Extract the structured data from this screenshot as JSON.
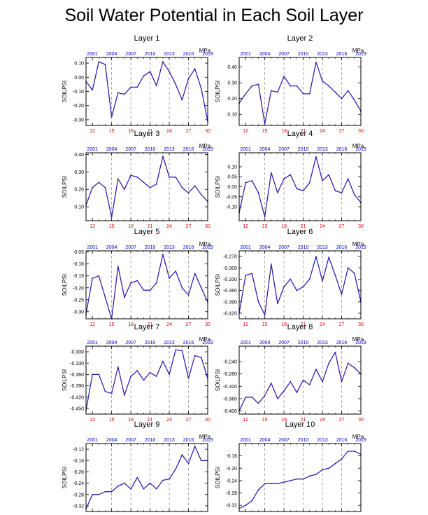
{
  "title": "Soil Water Potential in Each Soil Layer",
  "colors": {
    "line": "#2222cc",
    "line_overlay": "#cc0000",
    "bottom_ticks": "#dd0000",
    "top_ticks": "#0000cc",
    "axis": "#000000",
    "grid": "#888888"
  },
  "chart_data": [
    {
      "type": "line",
      "title": "Layer 1",
      "ylabel": "SOILPSI",
      "unit": "MPa",
      "ylim": [
        -0.34,
        0.14
      ],
      "yticks": [
        0.1,
        0.0,
        -0.1,
        -0.2,
        -0.3
      ],
      "ytick_labels": [
        "0.10",
        "0.00",
        "-0.10",
        "-0.20",
        "-0.30"
      ],
      "xlim": [
        11,
        30
      ],
      "xticks": [
        12,
        15,
        18,
        21,
        24,
        27,
        30
      ],
      "xtick_labels": [
        "12",
        "15",
        "18",
        "21",
        "24",
        "27",
        "30"
      ],
      "top_tick_labels": [
        "2001",
        "2004",
        "2007",
        "2010",
        "2013",
        "2016",
        "2019"
      ],
      "grid_x": [
        15,
        18,
        21,
        24,
        27
      ],
      "x": [
        11,
        12,
        13,
        14,
        15,
        16,
        17,
        18,
        19,
        20,
        21,
        22,
        23,
        24,
        25,
        26,
        27,
        28,
        29,
        30
      ],
      "values": [
        -0.03,
        -0.09,
        0.11,
        0.09,
        -0.28,
        -0.11,
        -0.12,
        -0.07,
        -0.07,
        0.01,
        0.04,
        -0.06,
        0.11,
        0.04,
        -0.05,
        -0.16,
        -0.01,
        0.06,
        -0.08,
        -0.31
      ]
    },
    {
      "type": "line",
      "title": "Layer 2",
      "ylabel": "SOILPSI",
      "unit": "MPa",
      "ylim": [
        0.03,
        0.46
      ],
      "yticks": [
        0.4,
        0.3,
        0.2,
        0.1
      ],
      "ytick_labels": [
        "0.40",
        "0.30",
        "0.20",
        "0.10"
      ],
      "xlim": [
        11,
        30
      ],
      "xticks": [
        12,
        15,
        18,
        21,
        24,
        27,
        30
      ],
      "xtick_labels": [
        "12",
        "15",
        "18",
        "21",
        "24",
        "27",
        "30"
      ],
      "top_tick_labels": [
        "2001",
        "2004",
        "2007",
        "2010",
        "2013",
        "2016",
        "2019"
      ],
      "grid_x": [
        15,
        18,
        21,
        24,
        27
      ],
      "x": [
        11,
        12,
        13,
        14,
        15,
        16,
        17,
        18,
        19,
        20,
        21,
        22,
        23,
        24,
        25,
        26,
        27,
        28,
        29,
        30
      ],
      "values": [
        0.17,
        0.23,
        0.28,
        0.29,
        0.04,
        0.25,
        0.24,
        0.34,
        0.28,
        0.28,
        0.23,
        0.23,
        0.43,
        0.31,
        0.28,
        0.24,
        0.2,
        0.25,
        0.19,
        0.12
      ]
    },
    {
      "type": "line",
      "title": "Layer 3",
      "ylabel": "SOILPSI",
      "unit": "MPa",
      "ylim": [
        0.02,
        0.41
      ],
      "yticks": [
        0.4,
        0.3,
        0.2,
        0.1
      ],
      "ytick_labels": [
        "0.40",
        "0.30",
        "0.20",
        "0.10"
      ],
      "xlim": [
        11,
        30
      ],
      "xticks": [
        12,
        15,
        18,
        21,
        24,
        27,
        30
      ],
      "xtick_labels": [
        "12",
        "15",
        "18",
        "21",
        "24",
        "27",
        "30"
      ],
      "top_tick_labels": [
        "2001",
        "2004",
        "2007",
        "2010",
        "2013",
        "2016",
        "2019"
      ],
      "grid_x": [
        15,
        18,
        21,
        24,
        27
      ],
      "x": [
        11,
        12,
        13,
        14,
        15,
        16,
        17,
        18,
        19,
        20,
        21,
        22,
        23,
        24,
        25,
        26,
        27,
        28,
        29,
        30
      ],
      "values": [
        0.11,
        0.21,
        0.24,
        0.21,
        0.04,
        0.26,
        0.2,
        0.28,
        0.27,
        0.24,
        0.21,
        0.23,
        0.39,
        0.27,
        0.27,
        0.21,
        0.18,
        0.22,
        0.17,
        0.13
      ]
    },
    {
      "type": "line",
      "title": "Layer 4",
      "ylabel": "SOILPSI",
      "unit": "MPa",
      "ylim": [
        -0.17,
        0.17
      ],
      "yticks": [
        0.1,
        0.05,
        0.0,
        -0.05,
        -0.1
      ],
      "ytick_labels": [
        "0.10",
        "0.05",
        "0.00",
        "-0.05",
        "-0.10"
      ],
      "xlim": [
        11,
        30
      ],
      "xticks": [
        12,
        15,
        18,
        21,
        24,
        27,
        30
      ],
      "xtick_labels": [
        "12",
        "15",
        "18",
        "21",
        "24",
        "27",
        "30"
      ],
      "top_tick_labels": [
        "2001",
        "2004",
        "2007",
        "2010",
        "2013",
        "2016",
        "2019"
      ],
      "grid_x": [
        15,
        18,
        21,
        24,
        27
      ],
      "x": [
        11,
        12,
        13,
        14,
        15,
        16,
        17,
        18,
        19,
        20,
        21,
        22,
        23,
        24,
        25,
        26,
        27,
        28,
        29,
        30
      ],
      "values": [
        -0.13,
        0.02,
        0.03,
        -0.03,
        -0.15,
        0.07,
        -0.03,
        0.04,
        0.06,
        -0.01,
        -0.02,
        0.02,
        0.15,
        0.03,
        0.06,
        -0.02,
        -0.03,
        0.04,
        -0.04,
        -0.08
      ]
    },
    {
      "type": "line",
      "title": "Layer 5",
      "ylabel": "SOILPSI",
      "unit": "MPa",
      "ylim": [
        -0.33,
        -0.045
      ],
      "yticks": [
        -0.05,
        -0.1,
        -0.15,
        -0.2,
        -0.25,
        -0.3
      ],
      "ytick_labels": [
        "-0.05",
        "-0.10",
        "-0.15",
        "-0.20",
        "-0.25",
        "-0.30"
      ],
      "xlim": [
        11,
        30
      ],
      "xticks": [
        12,
        15,
        18,
        21,
        24,
        27,
        30
      ],
      "xtick_labels": [
        "12",
        "15",
        "18",
        "21",
        "24",
        "27",
        "30"
      ],
      "top_tick_labels": [
        "2001",
        "2004",
        "2007",
        "2010",
        "2013",
        "2016",
        "2019"
      ],
      "grid_x": [
        15,
        18,
        21,
        24,
        27
      ],
      "x": [
        11,
        12,
        13,
        14,
        15,
        16,
        17,
        18,
        19,
        20,
        21,
        22,
        23,
        24,
        25,
        26,
        27,
        28,
        29,
        30
      ],
      "values": [
        -0.31,
        -0.16,
        -0.15,
        -0.24,
        -0.33,
        -0.11,
        -0.24,
        -0.18,
        -0.17,
        -0.21,
        -0.21,
        -0.18,
        -0.06,
        -0.16,
        -0.13,
        -0.2,
        -0.23,
        -0.14,
        -0.2,
        -0.26
      ]
    },
    {
      "type": "line",
      "title": "Layer 6",
      "ylabel": "SOILPSI",
      "unit": "MPa",
      "ylim": [
        -0.435,
        -0.255
      ],
      "yticks": [
        -0.27,
        -0.3,
        -0.33,
        -0.36,
        -0.39,
        -0.42
      ],
      "ytick_labels": [
        "-0.270",
        "-0.300",
        "-0.330",
        "-0.360",
        "-0.390",
        "-0.420"
      ],
      "xlim": [
        11,
        30
      ],
      "xticks": [
        12,
        15,
        18,
        21,
        24,
        27,
        30
      ],
      "xtick_labels": [
        "12",
        "15",
        "18",
        "21",
        "24",
        "27",
        "30"
      ],
      "top_tick_labels": [
        "2001",
        "2004",
        "2007",
        "2010",
        "2013",
        "2016",
        "2019"
      ],
      "grid_x": [
        15,
        18,
        21,
        24,
        27
      ],
      "x": [
        11,
        12,
        13,
        14,
        15,
        16,
        17,
        18,
        19,
        20,
        21,
        22,
        23,
        24,
        25,
        26,
        27,
        28,
        29,
        30
      ],
      "values": [
        -0.42,
        -0.32,
        -0.315,
        -0.39,
        -0.425,
        -0.29,
        -0.395,
        -0.35,
        -0.33,
        -0.36,
        -0.35,
        -0.33,
        -0.27,
        -0.335,
        -0.272,
        -0.32,
        -0.37,
        -0.3,
        -0.315,
        -0.39
      ]
    },
    {
      "type": "line",
      "title": "Layer 7",
      "ylabel": "SOILPSI",
      "unit": "MPa",
      "ylim": [
        -0.465,
        -0.285
      ],
      "yticks": [
        -0.3,
        -0.33,
        -0.36,
        -0.39,
        -0.42,
        -0.45
      ],
      "ytick_labels": [
        "-0.300",
        "-0.330",
        "-0.360",
        "-0.390",
        "-0.420",
        "-0.450"
      ],
      "xlim": [
        11,
        30
      ],
      "xticks": [
        12,
        15,
        18,
        21,
        24,
        27,
        30
      ],
      "xtick_labels": [
        "12",
        "15",
        "18",
        "21",
        "24",
        "27",
        "30"
      ],
      "top_tick_labels": [
        "2001",
        "2004",
        "2007",
        "2010",
        "2013",
        "2016",
        "2019"
      ],
      "grid_x": [
        15,
        18,
        21,
        24,
        27
      ],
      "x": [
        11,
        12,
        13,
        14,
        15,
        16,
        17,
        18,
        19,
        20,
        21,
        22,
        23,
        24,
        25,
        26,
        27,
        28,
        29,
        30
      ],
      "values": [
        -0.455,
        -0.36,
        -0.36,
        -0.405,
        -0.41,
        -0.34,
        -0.415,
        -0.365,
        -0.35,
        -0.375,
        -0.355,
        -0.365,
        -0.325,
        -0.36,
        -0.295,
        -0.297,
        -0.37,
        -0.31,
        -0.315,
        -0.37
      ]
    },
    {
      "type": "line",
      "title": "Layer 8",
      "ylabel": "SOILPSI",
      "unit": "MPa",
      "ylim": [
        -0.41,
        -0.19
      ],
      "yticks": [
        -0.24,
        -0.28,
        -0.32,
        -0.36,
        -0.4
      ],
      "ytick_labels": [
        "-0.240",
        "-0.280",
        "-0.320",
        "-0.360",
        "-0.400"
      ],
      "xlim": [
        11,
        30
      ],
      "xticks": [
        12,
        15,
        18,
        21,
        24,
        27,
        30
      ],
      "xtick_labels": [
        "12",
        "15",
        "18",
        "21",
        "24",
        "27",
        "30"
      ],
      "top_tick_labels": [
        "2001",
        "2004",
        "2007",
        "2010",
        "2013",
        "2016",
        "2019"
      ],
      "grid_x": [
        15,
        18,
        21,
        24,
        27
      ],
      "x": [
        11,
        12,
        13,
        14,
        15,
        16,
        17,
        18,
        19,
        20,
        21,
        22,
        23,
        24,
        25,
        26,
        27,
        28,
        29,
        30
      ],
      "values": [
        -0.4,
        -0.355,
        -0.355,
        -0.375,
        -0.35,
        -0.31,
        -0.36,
        -0.335,
        -0.305,
        -0.34,
        -0.3,
        -0.315,
        -0.265,
        -0.305,
        -0.245,
        -0.21,
        -0.305,
        -0.245,
        -0.26,
        -0.28
      ]
    },
    {
      "type": "line",
      "title": "Layer 9",
      "ylabel": "SOILPSI",
      "unit": "MPa",
      "ylim": [
        -0.34,
        -0.1
      ],
      "yticks": [
        -0.12,
        -0.16,
        -0.2,
        -0.24,
        -0.28,
        -0.32
      ],
      "ytick_labels": [
        "-0.12",
        "-0.16",
        "-0.20",
        "-0.24",
        "-0.28",
        "-0.32"
      ],
      "xlim": [
        11,
        30
      ],
      "xticks": [
        12,
        15,
        18,
        21,
        24,
        27,
        30
      ],
      "xtick_labels": [
        "12",
        "15",
        "18",
        "21",
        "24",
        "27",
        "30"
      ],
      "top_tick_labels": [
        "2001",
        "2004",
        "2007",
        "2010",
        "2013",
        "2016",
        "2019"
      ],
      "grid_x": [
        15,
        18,
        21,
        24,
        27
      ],
      "x": [
        11,
        12,
        13,
        14,
        15,
        16,
        17,
        18,
        19,
        20,
        21,
        22,
        23,
        24,
        25,
        26,
        27,
        28,
        29,
        30
      ],
      "values": [
        -0.33,
        -0.28,
        -0.28,
        -0.27,
        -0.27,
        -0.25,
        -0.24,
        -0.26,
        -0.22,
        -0.26,
        -0.24,
        -0.26,
        -0.23,
        -0.225,
        -0.19,
        -0.14,
        -0.17,
        -0.11,
        -0.16,
        -0.16
      ]
    },
    {
      "type": "line",
      "title": "Layer 10",
      "ylabel": "SOILPSI",
      "unit": "MPa",
      "ylim": [
        -0.34,
        -0.12
      ],
      "yticks": [
        -0.16,
        -0.2,
        -0.24,
        -0.28,
        -0.32
      ],
      "ytick_labels": [
        "-0.16",
        "-0.20",
        "-0.24",
        "-0.28",
        "-0.32"
      ],
      "xlim": [
        11,
        30
      ],
      "xticks": [
        12,
        15,
        18,
        21,
        24,
        27,
        30
      ],
      "xtick_labels": [
        "12",
        "15",
        "18",
        "21",
        "24",
        "27",
        "30"
      ],
      "top_tick_labels": [
        "2001",
        "2004",
        "2007",
        "2010",
        "2013",
        "2016",
        "2019"
      ],
      "grid_x": [
        15,
        18,
        21,
        24,
        27
      ],
      "x": [
        11,
        12,
        13,
        14,
        15,
        16,
        17,
        18,
        19,
        20,
        21,
        22,
        23,
        24,
        25,
        26,
        27,
        28,
        29,
        30
      ],
      "values": [
        -0.33,
        -0.32,
        -0.305,
        -0.27,
        -0.25,
        -0.25,
        -0.25,
        -0.245,
        -0.24,
        -0.235,
        -0.235,
        -0.225,
        -0.22,
        -0.205,
        -0.2,
        -0.185,
        -0.17,
        -0.145,
        -0.145,
        -0.155
      ]
    }
  ]
}
